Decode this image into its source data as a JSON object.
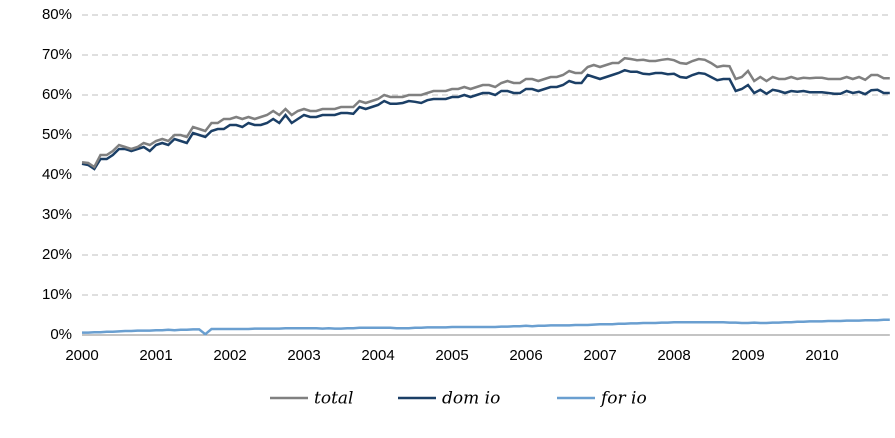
{
  "chart_data": {
    "type": "line",
    "categories": [
      "2000",
      null,
      null,
      null,
      null,
      null,
      null,
      null,
      null,
      null,
      null,
      null,
      "2001",
      null,
      null,
      null,
      null,
      null,
      null,
      null,
      null,
      null,
      null,
      null,
      "2002",
      null,
      null,
      null,
      null,
      null,
      null,
      null,
      null,
      null,
      null,
      null,
      "2003",
      null,
      null,
      null,
      null,
      null,
      null,
      null,
      null,
      null,
      null,
      null,
      "2004",
      null,
      null,
      null,
      null,
      null,
      null,
      null,
      null,
      null,
      null,
      null,
      "2005",
      null,
      null,
      null,
      null,
      null,
      null,
      null,
      null,
      null,
      null,
      null,
      "2006",
      null,
      null,
      null,
      null,
      null,
      null,
      null,
      null,
      null,
      null,
      null,
      "2007",
      null,
      null,
      null,
      null,
      null,
      null,
      null,
      null,
      null,
      null,
      null,
      "2008",
      null,
      null,
      null,
      null,
      null,
      null,
      null,
      null,
      null,
      null,
      null,
      "2009",
      null,
      null,
      null,
      null,
      null,
      null,
      null,
      null,
      null,
      null,
      null,
      "2010",
      null,
      null,
      null,
      null,
      null,
      null,
      null,
      null,
      null,
      null,
      null
    ],
    "series": [
      {
        "name": "total",
        "color": "#808080",
        "values": [
          43.2,
          43,
          42,
          45,
          45,
          46,
          47.5,
          47,
          46.5,
          47,
          48,
          47.5,
          48.5,
          49,
          48.5,
          50,
          50,
          49.5,
          52,
          51.5,
          51,
          53,
          53,
          54,
          54,
          54.5,
          54,
          54.5,
          54,
          54.5,
          55,
          56,
          55,
          56.5,
          55,
          56,
          56.5,
          56,
          56,
          56.5,
          56.5,
          56.5,
          57,
          57,
          57,
          58.5,
          58,
          58.5,
          59,
          60,
          59.5,
          59.5,
          59.5,
          60,
          60,
          60,
          60.5,
          61,
          61,
          61,
          61.5,
          61.5,
          62,
          61.5,
          62,
          62.5,
          62.5,
          62,
          63,
          63.5,
          63,
          63,
          64,
          64,
          63.5,
          64,
          64.5,
          64.5,
          65,
          66,
          65.5,
          65.5,
          67,
          67.5,
          67,
          67.5,
          68,
          68,
          69.2,
          69,
          68.7,
          68.8,
          68.5,
          68.5,
          68.8,
          69,
          68.7,
          68,
          67.8,
          68.5,
          69,
          68.8,
          68,
          67,
          67.3,
          67.2,
          64,
          64.5,
          66,
          63.5,
          64.5,
          63.5,
          64.5,
          64,
          64,
          64.5,
          64,
          64.3,
          64.2,
          64.3,
          64.3,
          64,
          64,
          64,
          64.5,
          64,
          64.5,
          63.8,
          65,
          65,
          64.2,
          64.2
        ]
      },
      {
        "name": "dom io",
        "color": "#1b3f66",
        "values": [
          42.8,
          42.5,
          41.5,
          44,
          44,
          45,
          46.5,
          46.5,
          46,
          46.5,
          47,
          46,
          47.5,
          48,
          47.5,
          49,
          48.5,
          48,
          50.5,
          50,
          49.5,
          51,
          51.5,
          51.5,
          52.5,
          52.5,
          52,
          53,
          52.5,
          52.5,
          53,
          54,
          53,
          55,
          53,
          54,
          55,
          54.5,
          54.5,
          55,
          55,
          55,
          55.5,
          55.5,
          55.3,
          57,
          56.5,
          57,
          57.5,
          58.5,
          57.8,
          57.8,
          58,
          58.5,
          58.3,
          58,
          58.7,
          59,
          59,
          59,
          59.5,
          59.5,
          60,
          59.5,
          60,
          60.5,
          60.5,
          60,
          61,
          61,
          60.5,
          60.5,
          61.5,
          61.5,
          61,
          61.5,
          62,
          62,
          62.5,
          63.5,
          63,
          63,
          65,
          64.5,
          64,
          64.5,
          65,
          65.5,
          66.2,
          65.8,
          65.8,
          65.3,
          65.2,
          65.5,
          65.5,
          65.2,
          65.3,
          64.5,
          64.3,
          65,
          65.5,
          65.3,
          64.5,
          63.7,
          64,
          64,
          61,
          61.5,
          62.5,
          60.5,
          61.3,
          60.3,
          61.3,
          61,
          60.5,
          61,
          60.8,
          61,
          60.7,
          60.7,
          60.7,
          60.5,
          60.3,
          60.3,
          61,
          60.5,
          60.8,
          60.2,
          61.2,
          61.3,
          60.5,
          60.5
        ]
      },
      {
        "name": "for io",
        "color": "#6a9fd0",
        "values": [
          0.6,
          0.6,
          0.7,
          0.7,
          0.8,
          0.8,
          0.9,
          1,
          1,
          1.1,
          1.1,
          1.1,
          1.2,
          1.2,
          1.3,
          1.2,
          1.3,
          1.3,
          1.4,
          1.4,
          0.2,
          1.5,
          1.5,
          1.5,
          1.5,
          1.5,
          1.5,
          1.5,
          1.6,
          1.6,
          1.6,
          1.6,
          1.6,
          1.7,
          1.7,
          1.7,
          1.7,
          1.7,
          1.7,
          1.6,
          1.7,
          1.6,
          1.6,
          1.7,
          1.7,
          1.8,
          1.8,
          1.8,
          1.8,
          1.8,
          1.8,
          1.7,
          1.7,
          1.7,
          1.8,
          1.8,
          1.9,
          1.9,
          1.9,
          1.9,
          2,
          2,
          2,
          2,
          2,
          2,
          2,
          2,
          2.1,
          2.1,
          2.2,
          2.2,
          2.3,
          2.2,
          2.3,
          2.3,
          2.4,
          2.4,
          2.4,
          2.4,
          2.5,
          2.5,
          2.5,
          2.6,
          2.7,
          2.7,
          2.7,
          2.8,
          2.8,
          2.9,
          2.9,
          3,
          3,
          3,
          3.1,
          3.1,
          3.2,
          3.2,
          3.2,
          3.2,
          3.2,
          3.2,
          3.2,
          3.2,
          3.2,
          3.1,
          3.1,
          3,
          3,
          3.1,
          3,
          3,
          3.1,
          3.1,
          3.2,
          3.2,
          3.3,
          3.3,
          3.4,
          3.4,
          3.4,
          3.5,
          3.5,
          3.5,
          3.6,
          3.6,
          3.6,
          3.7,
          3.7,
          3.7,
          3.8,
          3.8
        ]
      }
    ],
    "ylim": [
      0,
      80
    ],
    "yticks": [
      {
        "value": 0,
        "label": "0%"
      },
      {
        "value": 10,
        "label": "10%"
      },
      {
        "value": 20,
        "label": "20%"
      },
      {
        "value": 30,
        "label": "30%"
      },
      {
        "value": 40,
        "label": "40%"
      },
      {
        "value": 50,
        "label": "50%"
      },
      {
        "value": 60,
        "label": "60%"
      },
      {
        "value": 70,
        "label": "70%"
      },
      {
        "value": 80,
        "label": "80%"
      }
    ],
    "grid": true,
    "legend": "bottom"
  }
}
